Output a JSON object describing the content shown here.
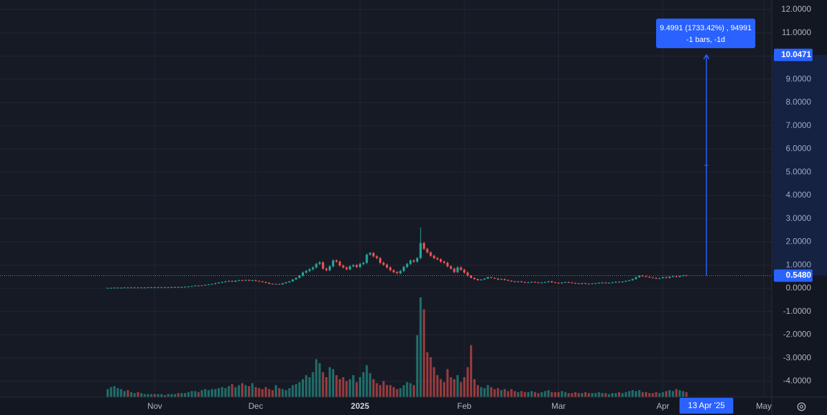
{
  "chart_data": {
    "type": "candlestick",
    "up_color": "#26a69a",
    "down_color": "#ef5350",
    "grid": true,
    "xlim": [
      -32,
      197.4
    ],
    "xticks": [
      {
        "value": 14,
        "label": "Nov"
      },
      {
        "value": 44,
        "label": "Dec"
      },
      {
        "value": 75,
        "label": "2025"
      },
      {
        "value": 106,
        "label": "Feb"
      },
      {
        "value": 134,
        "label": "Mar"
      },
      {
        "value": 165,
        "label": "Apr"
      },
      {
        "value": 195,
        "label": "May"
      }
    ],
    "ylim": [
      -4.68,
      12.41
    ],
    "yticks": [
      {
        "value": 12,
        "label": "12.0000"
      },
      {
        "value": 11,
        "label": "11.0000"
      },
      {
        "value": 10,
        "label": "10.0000"
      },
      {
        "value": 9,
        "label": "9.0000"
      },
      {
        "value": 8,
        "label": "8.0000"
      },
      {
        "value": 7,
        "label": "7.0000"
      },
      {
        "value": 6,
        "label": "6.0000"
      },
      {
        "value": 5,
        "label": "5.0000"
      },
      {
        "value": 4,
        "label": "4.0000"
      },
      {
        "value": 3,
        "label": "3.0000"
      },
      {
        "value": 2,
        "label": "2.0000"
      },
      {
        "value": 1,
        "label": "1.0000"
      },
      {
        "value": 0,
        "label": "0.0000"
      },
      {
        "value": -1,
        "label": "-1.0000"
      },
      {
        "value": -2,
        "label": "-2.0000"
      },
      {
        "value": -3,
        "label": "-3.0000"
      },
      {
        "value": -4,
        "label": "-4.0000"
      }
    ],
    "volume_ylim": [
      0,
      100
    ],
    "open": [
      0.02,
      0.02,
      0.02,
      0.03,
      0.03,
      0.03,
      0.04,
      0.03,
      0.04,
      0.04,
      0.03,
      0.04,
      0.04,
      0.05,
      0.05,
      0.04,
      0.05,
      0.05,
      0.04,
      0.05,
      0.06,
      0.06,
      0.05,
      0.06,
      0.07,
      0.08,
      0.1,
      0.12,
      0.11,
      0.13,
      0.15,
      0.17,
      0.19,
      0.22,
      0.25,
      0.27,
      0.3,
      0.32,
      0.29,
      0.33,
      0.35,
      0.34,
      0.36,
      0.33,
      0.35,
      0.32,
      0.3,
      0.27,
      0.24,
      0.2,
      0.18,
      0.19,
      0.17,
      0.22,
      0.26,
      0.3,
      0.38,
      0.45,
      0.55,
      0.68,
      0.75,
      0.82,
      0.9,
      1.05,
      1.12,
      0.85,
      0.78,
      0.95,
      1.2,
      1.15,
      0.98,
      0.9,
      0.82,
      0.95,
      1.0,
      0.92,
      1.05,
      1.1,
      1.45,
      1.52,
      1.38,
      1.3,
      1.1,
      1.02,
      0.9,
      0.78,
      0.7,
      0.65,
      0.75,
      0.92,
      1.05,
      1.2,
      1.15,
      1.3,
      1.95,
      1.7,
      1.55,
      1.4,
      1.3,
      1.25,
      1.15,
      1.1,
      0.95,
      0.85,
      0.7,
      0.9,
      0.8,
      0.68,
      0.55,
      0.45,
      0.4,
      0.35,
      0.38,
      0.42,
      0.48,
      0.45,
      0.42,
      0.38,
      0.4,
      0.36,
      0.33,
      0.3,
      0.28,
      0.3,
      0.27,
      0.25,
      0.26,
      0.28,
      0.26,
      0.24,
      0.25,
      0.27,
      0.3,
      0.26,
      0.24,
      0.22,
      0.25,
      0.27,
      0.25,
      0.23,
      0.21,
      0.2,
      0.22,
      0.2,
      0.19,
      0.21,
      0.22,
      0.24,
      0.25,
      0.23,
      0.24,
      0.26,
      0.28,
      0.27,
      0.29,
      0.32,
      0.35,
      0.4,
      0.48,
      0.55,
      0.52,
      0.5,
      0.47,
      0.45,
      0.42,
      0.44,
      0.48,
      0.45,
      0.5,
      0.52,
      0.49,
      0.53,
      0.56
    ],
    "high": [
      0.03,
      0.03,
      0.04,
      0.04,
      0.04,
      0.05,
      0.05,
      0.05,
      0.05,
      0.05,
      0.05,
      0.05,
      0.06,
      0.06,
      0.06,
      0.06,
      0.06,
      0.06,
      0.06,
      0.07,
      0.07,
      0.07,
      0.07,
      0.08,
      0.09,
      0.11,
      0.13,
      0.13,
      0.14,
      0.16,
      0.18,
      0.2,
      0.24,
      0.27,
      0.29,
      0.32,
      0.34,
      0.34,
      0.35,
      0.37,
      0.37,
      0.38,
      0.38,
      0.37,
      0.37,
      0.34,
      0.32,
      0.29,
      0.26,
      0.21,
      0.2,
      0.2,
      0.24,
      0.28,
      0.32,
      0.4,
      0.47,
      0.57,
      0.73,
      0.8,
      0.87,
      0.95,
      1.1,
      1.17,
      1.17,
      0.9,
      1.0,
      1.25,
      1.25,
      1.2,
      1.03,
      0.95,
      1.0,
      1.05,
      1.05,
      1.1,
      1.15,
      1.5,
      1.57,
      1.57,
      1.43,
      1.35,
      1.15,
      1.07,
      0.95,
      0.83,
      0.75,
      0.8,
      0.97,
      1.1,
      1.25,
      1.25,
      1.35,
      2.62,
      2.0,
      1.75,
      1.6,
      1.45,
      1.35,
      1.3,
      1.2,
      1.15,
      1.0,
      0.9,
      0.95,
      0.95,
      0.85,
      0.73,
      0.57,
      0.47,
      0.42,
      0.4,
      0.44,
      0.5,
      0.5,
      0.47,
      0.44,
      0.42,
      0.42,
      0.38,
      0.35,
      0.32,
      0.32,
      0.32,
      0.29,
      0.28,
      0.3,
      0.3,
      0.28,
      0.27,
      0.29,
      0.32,
      0.32,
      0.28,
      0.26,
      0.27,
      0.29,
      0.29,
      0.27,
      0.25,
      0.23,
      0.24,
      0.24,
      0.21,
      0.22,
      0.24,
      0.26,
      0.27,
      0.27,
      0.26,
      0.28,
      0.3,
      0.3,
      0.31,
      0.34,
      0.37,
      0.42,
      0.5,
      0.57,
      0.57,
      0.54,
      0.52,
      0.49,
      0.47,
      0.46,
      0.5,
      0.5,
      0.52,
      0.54,
      0.54,
      0.55,
      0.58,
      0.58
    ],
    "low": [
      0.01,
      0.01,
      0.01,
      0.02,
      0.02,
      0.02,
      0.02,
      0.02,
      0.03,
      0.02,
      0.02,
      0.03,
      0.03,
      0.04,
      0.03,
      0.03,
      0.04,
      0.03,
      0.03,
      0.04,
      0.05,
      0.04,
      0.04,
      0.05,
      0.06,
      0.07,
      0.09,
      0.1,
      0.1,
      0.12,
      0.14,
      0.16,
      0.17,
      0.2,
      0.23,
      0.25,
      0.28,
      0.27,
      0.27,
      0.31,
      0.32,
      0.32,
      0.31,
      0.31,
      0.3,
      0.28,
      0.25,
      0.22,
      0.18,
      0.17,
      0.17,
      0.16,
      0.16,
      0.2,
      0.24,
      0.28,
      0.36,
      0.43,
      0.5,
      0.63,
      0.7,
      0.77,
      0.85,
      1.0,
      0.8,
      0.73,
      0.73,
      0.9,
      1.1,
      0.93,
      0.85,
      0.77,
      0.77,
      0.9,
      0.87,
      0.87,
      1.0,
      1.05,
      1.4,
      1.33,
      1.25,
      1.05,
      0.97,
      0.85,
      0.73,
      0.65,
      0.6,
      0.6,
      0.7,
      0.87,
      1.0,
      1.1,
      1.1,
      1.25,
      1.65,
      1.5,
      1.35,
      1.25,
      1.2,
      1.1,
      1.05,
      0.9,
      0.8,
      0.65,
      0.65,
      0.75,
      0.63,
      0.5,
      0.43,
      0.38,
      0.33,
      0.33,
      0.36,
      0.4,
      0.43,
      0.4,
      0.36,
      0.36,
      0.34,
      0.31,
      0.28,
      0.26,
      0.26,
      0.25,
      0.23,
      0.23,
      0.24,
      0.24,
      0.22,
      0.22,
      0.23,
      0.25,
      0.24,
      0.22,
      0.2,
      0.2,
      0.23,
      0.23,
      0.21,
      0.19,
      0.18,
      0.18,
      0.18,
      0.18,
      0.18,
      0.19,
      0.2,
      0.22,
      0.21,
      0.21,
      0.22,
      0.24,
      0.25,
      0.25,
      0.27,
      0.3,
      0.33,
      0.38,
      0.46,
      0.5,
      0.48,
      0.45,
      0.43,
      0.4,
      0.4,
      0.42,
      0.43,
      0.43,
      0.48,
      0.47,
      0.47,
      0.51,
      0.53
    ],
    "close": [
      0.02,
      0.02,
      0.03,
      0.03,
      0.03,
      0.04,
      0.03,
      0.04,
      0.04,
      0.03,
      0.04,
      0.04,
      0.05,
      0.05,
      0.04,
      0.05,
      0.05,
      0.04,
      0.05,
      0.06,
      0.06,
      0.05,
      0.06,
      0.07,
      0.08,
      0.1,
      0.12,
      0.11,
      0.13,
      0.15,
      0.17,
      0.19,
      0.22,
      0.25,
      0.27,
      0.3,
      0.32,
      0.29,
      0.33,
      0.35,
      0.34,
      0.36,
      0.33,
      0.35,
      0.32,
      0.3,
      0.27,
      0.24,
      0.2,
      0.18,
      0.19,
      0.17,
      0.22,
      0.26,
      0.3,
      0.38,
      0.45,
      0.55,
      0.68,
      0.75,
      0.82,
      0.9,
      1.05,
      1.12,
      0.85,
      0.78,
      0.95,
      1.2,
      1.15,
      0.98,
      0.9,
      0.82,
      0.95,
      1.0,
      0.92,
      1.05,
      1.1,
      1.45,
      1.52,
      1.38,
      1.3,
      1.1,
      1.02,
      0.9,
      0.78,
      0.7,
      0.65,
      0.75,
      0.92,
      1.05,
      1.2,
      1.15,
      1.3,
      1.95,
      1.7,
      1.55,
      1.4,
      1.3,
      1.25,
      1.15,
      1.1,
      0.95,
      0.85,
      0.7,
      0.9,
      0.8,
      0.68,
      0.55,
      0.45,
      0.4,
      0.35,
      0.38,
      0.42,
      0.48,
      0.45,
      0.42,
      0.38,
      0.4,
      0.36,
      0.33,
      0.3,
      0.28,
      0.3,
      0.27,
      0.25,
      0.26,
      0.28,
      0.26,
      0.24,
      0.25,
      0.27,
      0.3,
      0.26,
      0.24,
      0.22,
      0.25,
      0.27,
      0.25,
      0.23,
      0.21,
      0.2,
      0.22,
      0.2,
      0.19,
      0.21,
      0.22,
      0.24,
      0.25,
      0.23,
      0.24,
      0.26,
      0.28,
      0.27,
      0.29,
      0.32,
      0.35,
      0.4,
      0.48,
      0.55,
      0.52,
      0.5,
      0.47,
      0.45,
      0.42,
      0.44,
      0.48,
      0.45,
      0.5,
      0.52,
      0.49,
      0.53,
      0.56,
      0.548
    ],
    "volume": [
      8,
      10,
      11,
      9,
      8,
      6,
      7,
      5,
      4,
      5,
      4,
      3,
      3,
      3,
      3,
      3,
      3,
      2,
      3,
      3,
      3,
      4,
      4,
      4,
      5,
      6,
      6,
      5,
      7,
      8,
      7,
      8,
      8,
      9,
      10,
      9,
      11,
      13,
      10,
      12,
      14,
      12,
      11,
      14,
      10,
      9,
      8,
      10,
      8,
      7,
      12,
      9,
      8,
      7,
      9,
      12,
      13,
      15,
      18,
      22,
      20,
      25,
      38,
      34,
      25,
      20,
      30,
      28,
      22,
      18,
      20,
      16,
      18,
      22,
      15,
      20,
      25,
      32,
      24,
      18,
      14,
      12,
      16,
      12,
      12,
      10,
      8,
      9,
      12,
      15,
      14,
      12,
      62,
      100,
      88,
      45,
      40,
      30,
      22,
      18,
      15,
      28,
      20,
      18,
      22,
      15,
      20,
      30,
      52,
      18,
      12,
      10,
      9,
      12,
      10,
      8,
      9,
      7,
      8,
      6,
      8,
      6,
      5,
      6,
      5,
      5,
      6,
      5,
      4,
      5,
      6,
      7,
      5,
      5,
      5,
      6,
      5,
      4,
      4,
      5,
      4,
      4,
      5,
      4,
      4,
      4,
      5,
      4,
      4,
      3,
      4,
      4,
      5,
      4,
      5,
      6,
      7,
      6,
      7,
      5,
      5,
      4,
      4,
      5,
      4,
      5,
      6,
      7,
      6,
      8,
      7,
      6,
      5
    ],
    "last_price": {
      "value": 0.548,
      "label": "0.5480"
    },
    "measure": {
      "start": 0.548,
      "end": 10.0471,
      "color": "#2962ff",
      "label": "9.4991 (1733.42%) , 94991",
      "sublabel": "-1 bars, -1d",
      "time_label": "13 Apr '25"
    }
  }
}
